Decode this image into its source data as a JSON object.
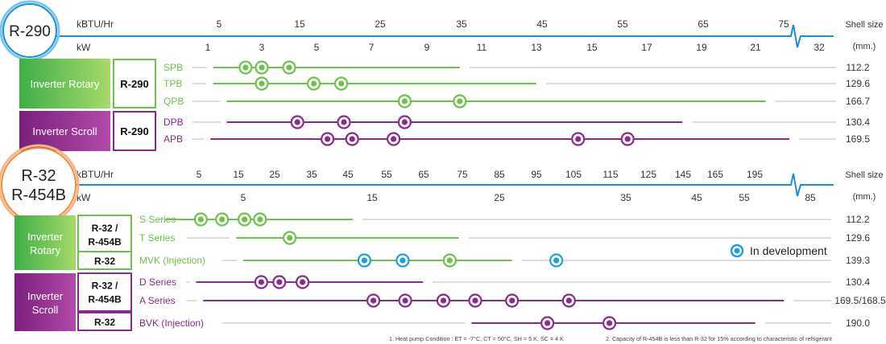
{
  "colors": {
    "axis": "#1a8fd6",
    "rotary": "#6cc24a",
    "scroll": "#8a2a8c",
    "dev": "#1fa0dc",
    "grey": "#bdbdbd",
    "text": "#333333"
  },
  "chart_data": {
    "type": "dot-range",
    "panels": [
      {
        "refrigerant_badge": "R-290",
        "axis_top_unit": "kBTU/Hr",
        "axis_bottom_unit": "kW",
        "axis_top_ticks": [
          "5",
          "15",
          "25",
          "35",
          "45",
          "55",
          "65",
          "75"
        ],
        "axis_bottom_ticks": [
          "1",
          "3",
          "5",
          "7",
          "9",
          "11",
          "13",
          "15",
          "17",
          "19",
          "21",
          "32"
        ],
        "shell_header": [
          "Shell size",
          "(mm.)"
        ],
        "groups": [
          {
            "category": "Inverter Rotary",
            "tags": [
              "R-290"
            ],
            "color": "rotary"
          },
          {
            "category": "Inverter Scroll",
            "tags": [
              "R-290"
            ],
            "color": "scroll"
          }
        ],
        "series": [
          {
            "name": "SPB",
            "group": 0,
            "range_kw": [
              1.2,
              10.2
            ],
            "points_kw": [
              2.4,
              3.0,
              4.0
            ],
            "shell": "112.2"
          },
          {
            "name": "TPB",
            "group": 0,
            "range_kw": [
              1.2,
              13.0
            ],
            "points_kw": [
              3.0,
              4.9,
              5.9
            ],
            "shell": "129.6"
          },
          {
            "name": "QPB",
            "group": 0,
            "range_kw": [
              1.7,
              21.3
            ],
            "points_kw": [
              8.2,
              10.2
            ],
            "shell": "166.7"
          },
          {
            "name": "DPB",
            "group": 1,
            "range_kw": [
              1.7,
              18.3
            ],
            "points_kw": [
              4.3,
              6.0,
              8.2
            ],
            "shell": "130.4"
          },
          {
            "name": "APB",
            "group": 1,
            "range_kw": [
              1.1,
              22.0
            ],
            "points_kw": [
              5.4,
              6.3,
              7.8,
              14.5,
              16.3
            ],
            "shell": "169.5"
          }
        ]
      },
      {
        "refrigerant_badge": [
          "R-32",
          "R-454B"
        ],
        "axis_top_unit": "kBTU/Hr",
        "axis_bottom_unit": "kW",
        "axis_top_ticks": [
          "5",
          "15",
          "25",
          "35",
          "45",
          "55",
          "65",
          "75",
          "85",
          "95",
          "105",
          "115",
          "125",
          "145",
          "165",
          "195"
        ],
        "axis_bottom_ticks": [
          "5",
          "15",
          "25",
          "35",
          "45",
          "55",
          "85"
        ],
        "shell_header": [
          "Shell size",
          "(mm.)"
        ],
        "groups": [
          {
            "category": "Inverter Rotary",
            "tags": [
              "R-32 / R-454B",
              "R-32"
            ],
            "color": "rotary"
          },
          {
            "category": "Inverter Scroll",
            "tags": [
              "R-32 / R-454B",
              "R-32"
            ],
            "color": "scroll"
          }
        ],
        "series": [
          {
            "name": "S Series",
            "group": 0,
            "range_kw": [
              1.7,
              13.5
            ],
            "points_kw": [
              3.2,
              4.1,
              5.1,
              6.3
            ],
            "shell": "112.2"
          },
          {
            "name": "T Series",
            "group": 0,
            "range_kw": [
              4.7,
              21.8
            ],
            "points_kw": [
              8.6
            ],
            "shell": "129.6"
          },
          {
            "name": "MVK (Injection)",
            "group": 0,
            "range_kw": [
              5.0,
              26.0
            ],
            "points_kw": [
              14.4,
              17.4,
              21.1,
              29.5
            ],
            "dev_points_kw": [
              14.4,
              17.4,
              29.5
            ],
            "shell": "139.3"
          },
          {
            "name": "D Series",
            "group": 1,
            "range_kw": [
              3.0,
              19.0
            ],
            "points_kw": [
              6.4,
              7.8,
              9.6
            ],
            "shell": "130.4"
          },
          {
            "name": "A Series",
            "group": 1,
            "range_kw": [
              3.3,
              73.0
            ],
            "points_kw": [
              15.1,
              17.6,
              20.6,
              23.1,
              26.0,
              30.5
            ],
            "shell": "169.5/168.5"
          },
          {
            "name": "BVK (Injection)",
            "group": 1,
            "range_kw": [
              22.8,
              60.0
            ],
            "points_kw": [
              28.8,
              33.7
            ],
            "shell": "190.0"
          }
        ],
        "legend": "In development"
      }
    ],
    "footnotes": [
      "1. Heat pump Condition : ET = -7°C, CT = 50°C, SH = 5 K, SC = 4 K",
      "2. Capacity of R-454B is less than R-32 for 15% according to characteristic of refrigerant"
    ]
  }
}
